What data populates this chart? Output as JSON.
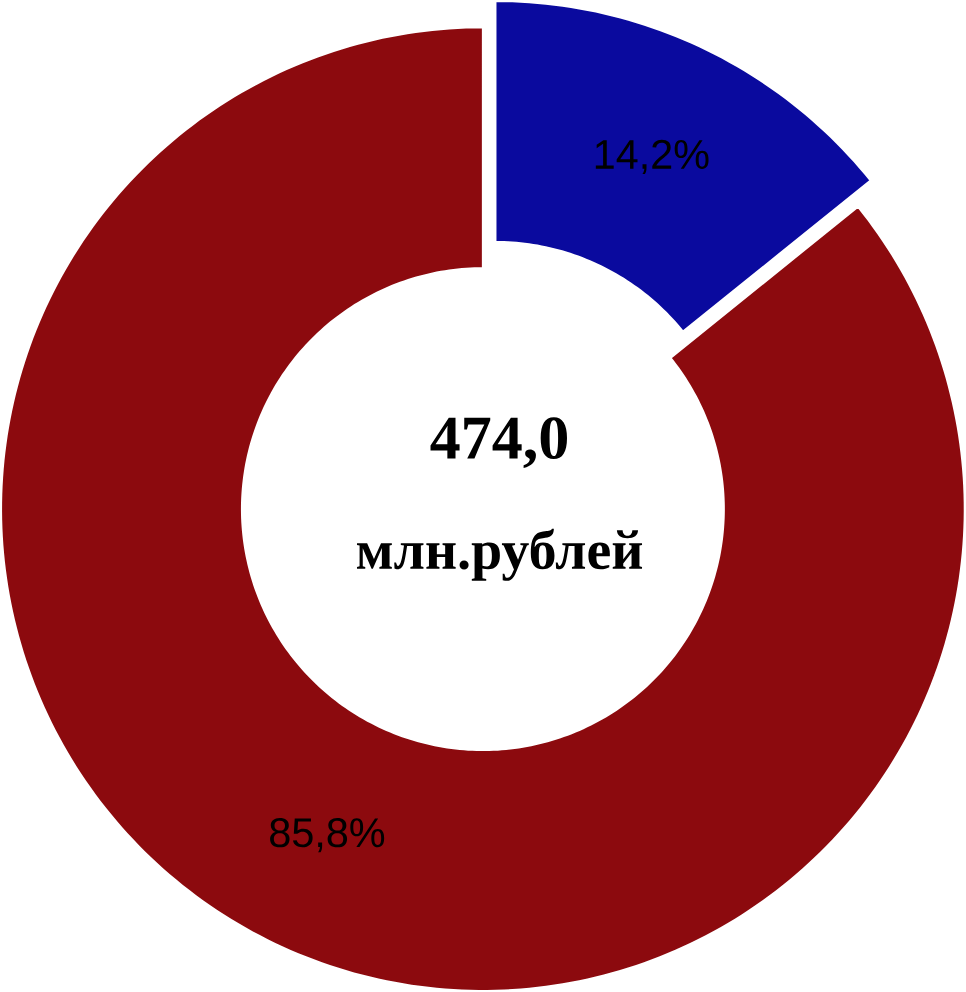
{
  "chart_data": {
    "type": "donut",
    "categories": [
      null,
      null
    ],
    "values": [
      14.2,
      85.8
    ],
    "colors": [
      "#0a0a9e",
      "#8c0a0e"
    ],
    "value_labels": [
      "14,2%",
      "85,8%"
    ],
    "annotations": [
      "**474,0**",
      "**млн.рублей**"
    ]
  }
}
